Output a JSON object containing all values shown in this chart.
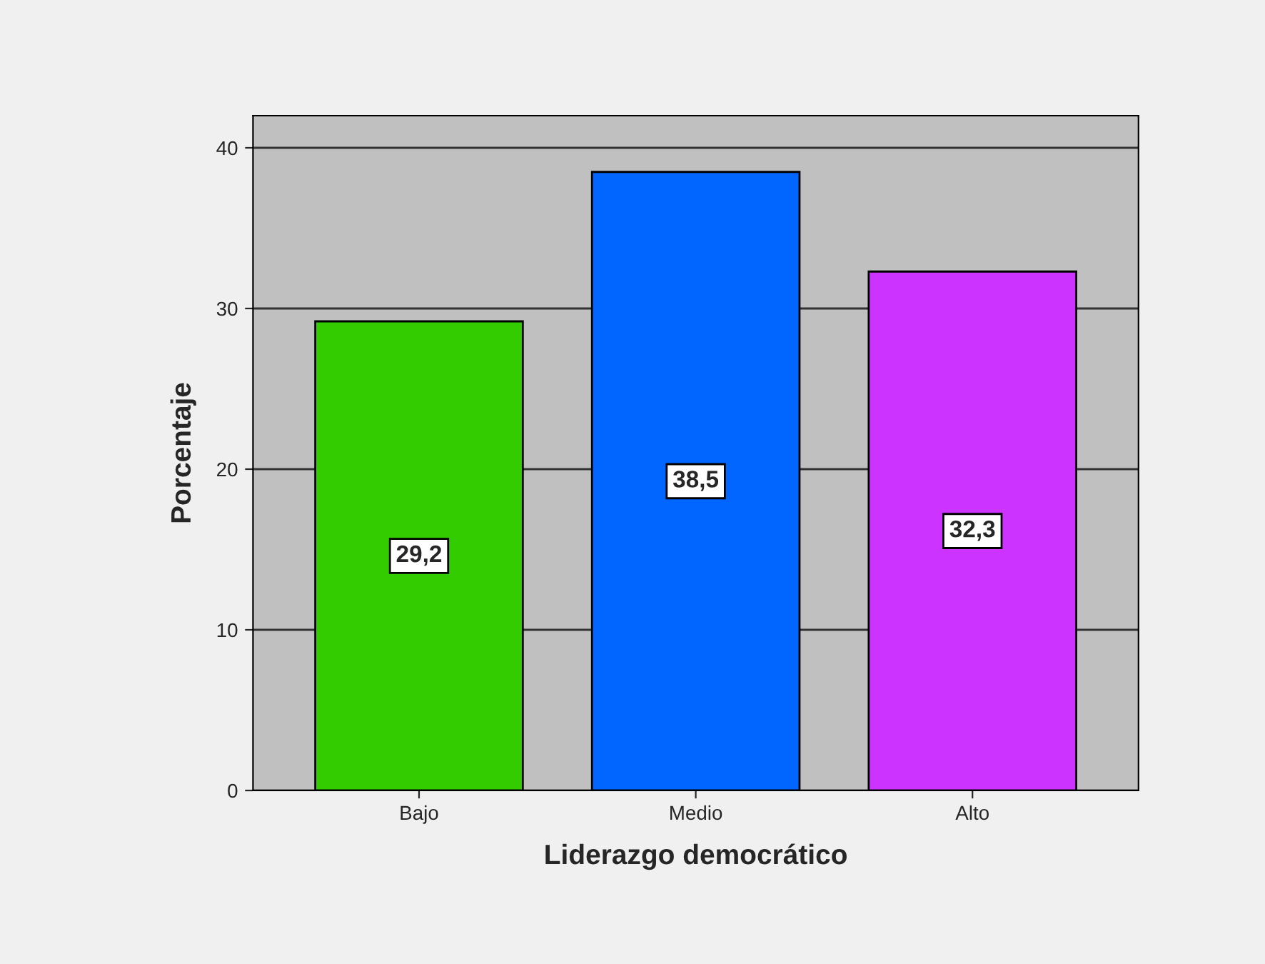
{
  "chart_data": {
    "type": "bar",
    "xlabel": "Liderazgo democrático",
    "ylabel": "Porcentaje",
    "categories": [
      "Bajo",
      "Medio",
      "Alto"
    ],
    "values": [
      29.2,
      38.5,
      32.3
    ],
    "value_labels": [
      "29,2",
      "38,5",
      "32,3"
    ],
    "colors": [
      "#33cc00",
      "#0066ff",
      "#cc33ff"
    ],
    "ylim": [
      0,
      42
    ],
    "yticks": [
      0,
      10,
      20,
      30,
      40
    ],
    "grid": "y"
  }
}
